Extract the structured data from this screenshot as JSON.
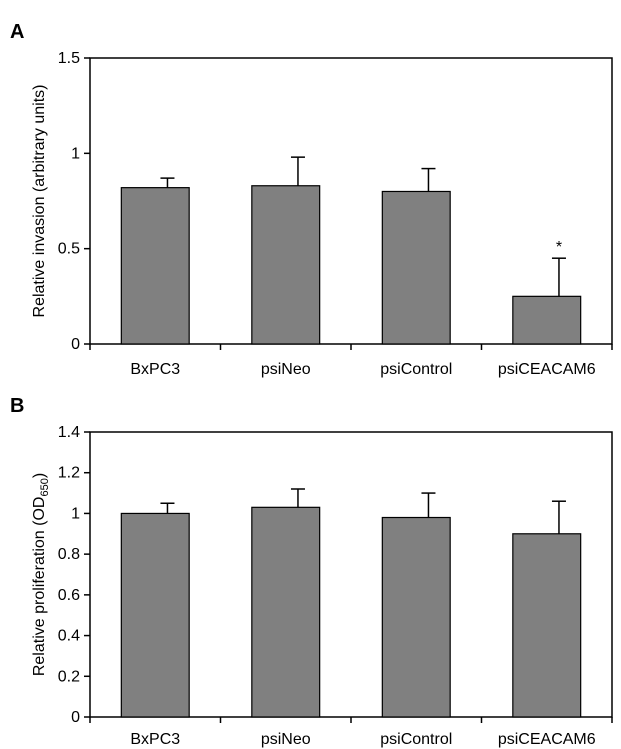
{
  "chart_data": [
    {
      "type": "bar",
      "panel": "A",
      "categories": [
        "BxPC3",
        "psiNeo",
        "psiControl",
        "psiCEACAM6"
      ],
      "values": [
        0.82,
        0.83,
        0.8,
        0.25
      ],
      "errors": [
        0.05,
        0.15,
        0.12,
        0.2
      ],
      "annotations": [
        "",
        "",
        "",
        "*"
      ],
      "ylabel": "Relative invasion (arbitrary units)",
      "ylim": [
        0,
        1.5
      ],
      "yticks": [
        0,
        0.5,
        1,
        1.5
      ],
      "ytick_labels": [
        "0",
        "0.5",
        "1",
        "1.5"
      ],
      "bar_color": "#808080",
      "grid": false
    },
    {
      "type": "bar",
      "panel": "B",
      "categories": [
        "BxPC3",
        "psiNeo",
        "psiControl",
        "psiCEACAM6"
      ],
      "values": [
        1.0,
        1.03,
        0.98,
        0.9
      ],
      "errors": [
        0.05,
        0.09,
        0.12,
        0.16
      ],
      "annotations": [
        "",
        "",
        "",
        ""
      ],
      "ylabel": "Relative proliferation (OD",
      "ylabel_subscript": "650",
      "ylabel_suffix": ")",
      "ylim": [
        0,
        1.4
      ],
      "yticks": [
        0,
        0.2,
        0.4,
        0.6,
        0.8,
        1,
        1.2,
        1.4
      ],
      "ytick_labels": [
        "0",
        "0.2",
        "0.4",
        "0.6",
        "0.8",
        "1",
        "1.2",
        "1.4"
      ],
      "bar_color": "#808080",
      "grid": false
    }
  ]
}
